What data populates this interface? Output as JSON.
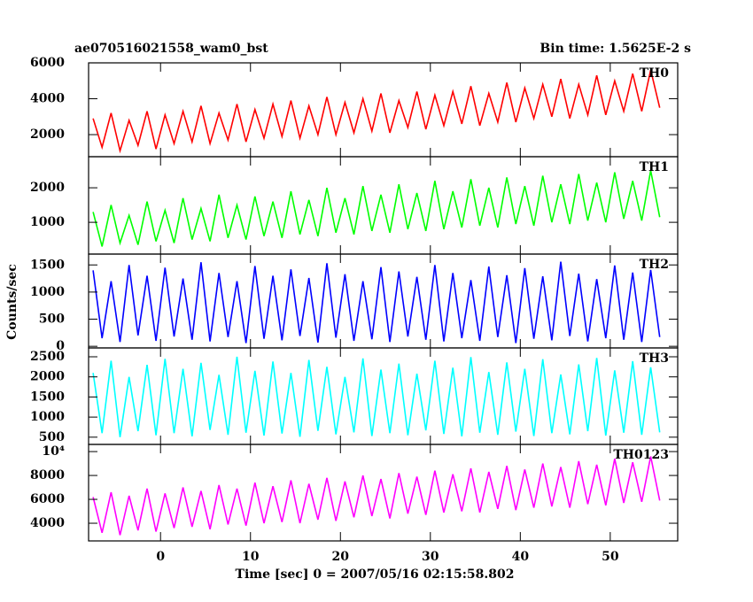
{
  "chart_data": {
    "type": "line",
    "title": "ae070516021558_wam0_bst",
    "subtitle": "Bin time: 1.5625E-2 s",
    "x_label": "Time [sec] 0 = 2007/05/16 02:15:58.802",
    "y_label": "Counts/sec",
    "xlim": [
      -8,
      57.5
    ],
    "xticks": [
      0,
      10,
      20,
      30,
      40,
      50
    ],
    "x": [
      -7.5,
      -6.5,
      -5.5,
      -4.5,
      -3.5,
      -2.5,
      -1.5,
      -0.5,
      0.5,
      1.5,
      2.5,
      3.5,
      4.5,
      5.5,
      6.5,
      7.5,
      8.5,
      9.5,
      10.5,
      11.5,
      12.5,
      13.5,
      14.5,
      15.5,
      16.5,
      17.5,
      18.5,
      19.5,
      20.5,
      21.5,
      22.5,
      23.5,
      24.5,
      25.5,
      26.5,
      27.5,
      28.5,
      29.5,
      30.5,
      31.5,
      32.5,
      33.5,
      34.5,
      35.5,
      36.5,
      37.5,
      38.5,
      39.5,
      40.5,
      41.5,
      42.5,
      43.5,
      44.5,
      45.5,
      46.5,
      47.5,
      48.5,
      49.5,
      50.5,
      51.5,
      52.5,
      53.5,
      54.5,
      55.5
    ],
    "panels": [
      {
        "name": "TH0",
        "color": "#ff0000",
        "ylim": [
          770,
          6000
        ],
        "yticks": [
          2000,
          4000,
          6000
        ],
        "values": [
          2900,
          1300,
          3200,
          1100,
          2800,
          1400,
          3300,
          1200,
          3100,
          1500,
          3300,
          1600,
          3600,
          1500,
          3200,
          1700,
          3700,
          1600,
          3400,
          1800,
          3700,
          1900,
          3900,
          1800,
          3600,
          2000,
          4100,
          2000,
          3800,
          2100,
          4000,
          2200,
          4300,
          2100,
          3900,
          2400,
          4400,
          2300,
          4200,
          2500,
          4400,
          2600,
          4700,
          2500,
          4300,
          2700,
          4900,
          2700,
          4600,
          2900,
          4800,
          3000,
          5100,
          2900,
          4800,
          3100,
          5300,
          3100,
          5000,
          3300,
          5400,
          3300,
          5600,
          3500
        ]
      },
      {
        "name": "TH1",
        "color": "#00ff00",
        "ylim": [
          80,
          2900
        ],
        "yticks": [
          1000,
          2000
        ],
        "values": [
          1300,
          300,
          1500,
          400,
          1200,
          350,
          1600,
          450,
          1350,
          400,
          1700,
          500,
          1400,
          450,
          1800,
          550,
          1500,
          500,
          1750,
          600,
          1600,
          550,
          1900,
          650,
          1650,
          600,
          2000,
          700,
          1700,
          650,
          2050,
          750,
          1800,
          700,
          2100,
          800,
          1850,
          750,
          2200,
          800,
          1900,
          850,
          2250,
          900,
          2000,
          850,
          2300,
          950,
          2050,
          900,
          2350,
          1000,
          2100,
          950,
          2400,
          1050,
          2150,
          1000,
          2450,
          1100,
          2200,
          1050,
          2500,
          1150
        ]
      },
      {
        "name": "TH2",
        "color": "#0000ff",
        "ylim": [
          -30,
          1700
        ],
        "yticks": [
          0,
          500,
          1000,
          1500
        ],
        "values": [
          1400,
          150,
          1200,
          80,
          1500,
          200,
          1300,
          100,
          1450,
          180,
          1250,
          120,
          1550,
          90,
          1350,
          170,
          1200,
          60,
          1480,
          140,
          1300,
          110,
          1420,
          190,
          1260,
          70,
          1530,
          160,
          1330,
          100,
          1200,
          130,
          1460,
          80,
          1380,
          180,
          1280,
          120,
          1500,
          90,
          1350,
          150,
          1220,
          100,
          1470,
          170,
          1310,
          60,
          1440,
          140,
          1290,
          110,
          1560,
          190,
          1340,
          90,
          1240,
          150,
          1490,
          120,
          1360,
          80,
          1410,
          170
        ]
      },
      {
        "name": "TH3",
        "color": "#00ffff",
        "ylim": [
          320,
          2720
        ],
        "yticks": [
          500,
          1000,
          1500,
          2000,
          2500
        ],
        "values": [
          2100,
          600,
          2400,
          500,
          2000,
          650,
          2300,
          550,
          2450,
          600,
          2200,
          520,
          2350,
          680,
          2050,
          560,
          2500,
          610,
          2150,
          540,
          2380,
          590,
          2100,
          510,
          2420,
          660,
          2250,
          570,
          2000,
          620,
          2460,
          530,
          2180,
          600,
          2330,
          550,
          2080,
          670,
          2400,
          580,
          2230,
          520,
          2490,
          610,
          2120,
          560,
          2360,
          640,
          2200,
          530,
          2440,
          600,
          2060,
          570,
          2310,
          650,
          2470,
          540,
          2160,
          610,
          2390,
          560,
          2240,
          620
        ]
      },
      {
        "name": "TH0123",
        "color": "#ff00ff",
        "ylim": [
          2520,
          10600
        ],
        "yticks": [
          4000,
          6000,
          8000,
          {
            "value": 10000,
            "label": "10⁴"
          }
        ],
        "values": [
          6200,
          3200,
          6600,
          3000,
          6300,
          3400,
          6900,
          3300,
          6500,
          3600,
          7000,
          3700,
          6700,
          3500,
          7200,
          3900,
          6900,
          3800,
          7400,
          4000,
          7100,
          4100,
          7600,
          4000,
          7300,
          4300,
          7800,
          4200,
          7500,
          4500,
          8000,
          4600,
          7700,
          4400,
          8200,
          4800,
          7900,
          4700,
          8400,
          4900,
          8100,
          5000,
          8600,
          4900,
          8300,
          5200,
          8800,
          5100,
          8500,
          5300,
          9000,
          5400,
          8700,
          5300,
          9200,
          5600,
          8900,
          5500,
          9400,
          5700,
          9100,
          5800,
          9600,
          5900
        ]
      }
    ]
  }
}
